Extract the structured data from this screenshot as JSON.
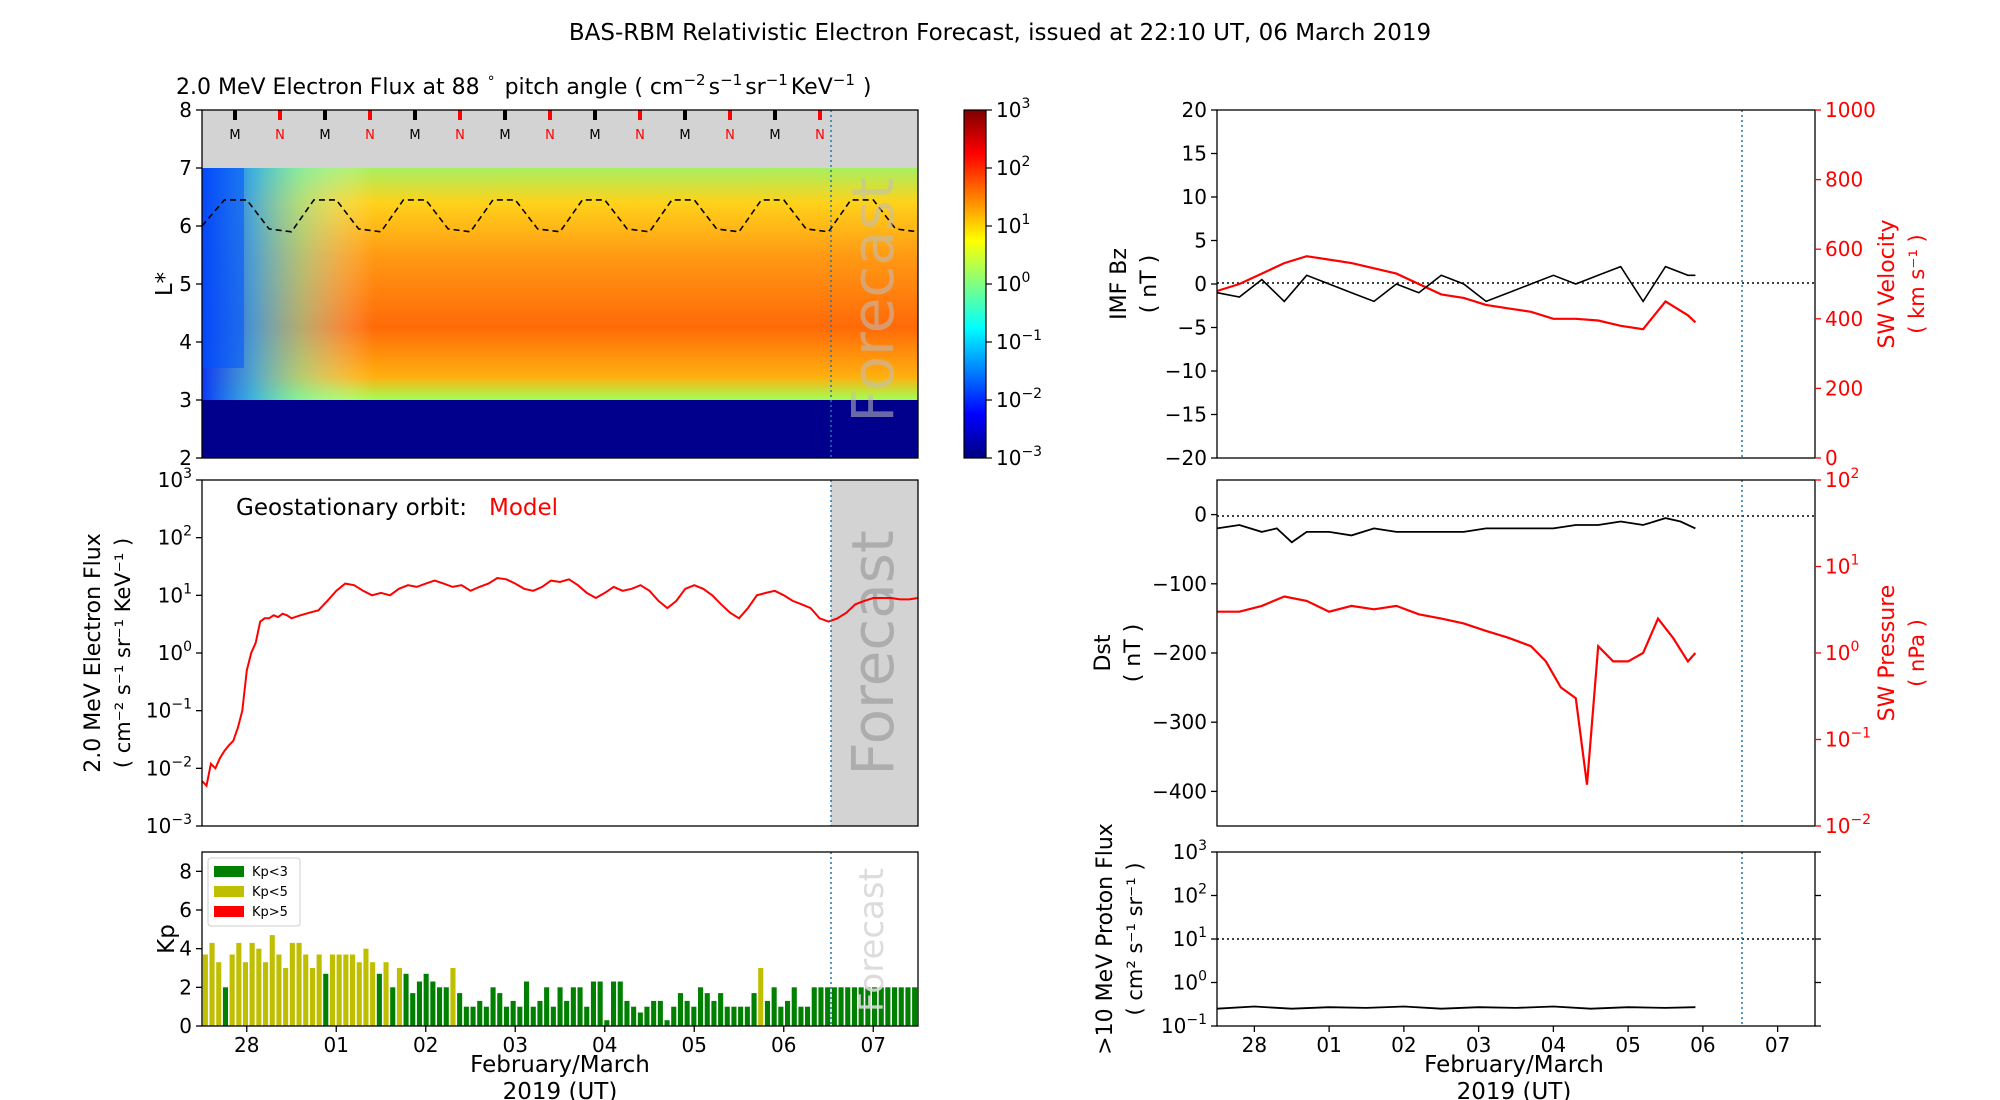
{
  "title": "BAS-RBM Relativistic Electron Forecast, issued at 22:10 UT, 06 March 2019",
  "colors": {
    "model": "#ff0000",
    "kp_low": "#008000",
    "kp_mid": "#bfbf00",
    "kp_high": "#ff0000",
    "forecast_shade": "#d3d3d3",
    "issue_line": "#1f77b4",
    "mn_ticks_m": "#000000",
    "mn_ticks_n": "#ff0000"
  },
  "date_ticks": [
    "28",
    "01",
    "02",
    "03",
    "04",
    "05",
    "06",
    "07"
  ],
  "x_axis": {
    "line1": "February/March",
    "line2": "2019 (UT)"
  },
  "forecast_label": "Forecast",
  "chart_data": [
    {
      "id": "lstar_flux",
      "type": "heatmap",
      "title_main": "2.0 MeV Electron Flux at 88",
      "title_deg": "°",
      "title_rest": "pitch angle ( cm",
      "title_sup1": "−2",
      "title_s": "s",
      "title_sup2": "−1",
      "title_sr": "sr",
      "title_sup3": "−1",
      "title_kev": "KeV",
      "title_sup4": "−1",
      "title_end": ")",
      "ylabel": "L*",
      "ylim": [
        2,
        8
      ],
      "yticks": [
        "2",
        "3",
        "4",
        "5",
        "6",
        "7",
        "8"
      ],
      "colorbar_ticks": [
        {
          "base": "10",
          "exp": "3"
        },
        {
          "base": "10",
          "exp": "2"
        },
        {
          "base": "10",
          "exp": "1"
        },
        {
          "base": "10",
          "exp": "0"
        },
        {
          "base": "10",
          "exp": "−1"
        },
        {
          "base": "10",
          "exp": "−2"
        },
        {
          "base": "10",
          "exp": "−3"
        }
      ],
      "mn_labels": [
        "M",
        "N",
        "M",
        "N",
        "M",
        "N",
        "M",
        "N",
        "M",
        "N",
        "M",
        "N",
        "M",
        "N"
      ],
      "magnetopause_L": [
        6.0,
        6.45,
        6.45,
        5.95,
        5.9,
        6.45,
        6.45,
        5.95,
        5.9,
        6.45,
        6.45,
        5.95,
        5.9,
        6.45,
        6.45,
        5.95,
        5.9,
        6.45,
        6.45,
        5.95,
        5.9,
        6.45,
        6.45,
        5.95,
        5.9,
        6.45,
        6.45,
        5.95,
        5.9,
        6.45,
        6.45,
        5.95,
        5.9
      ]
    },
    {
      "id": "geo_flux",
      "type": "line",
      "label_prefix": "Geostationary orbit:",
      "label_model": "Model",
      "ylabel_line1": "2.0 MeV Electron Flux",
      "ylabel_line2": "( cm⁻² s⁻¹ sr⁻¹ KeV⁻¹ )",
      "ylim": [
        0.001,
        1000
      ],
      "yscale": "log",
      "yticks": [
        {
          "base": "10",
          "exp": "3"
        },
        {
          "base": "10",
          "exp": "2"
        },
        {
          "base": "10",
          "exp": "1"
        },
        {
          "base": "10",
          "exp": "0"
        },
        {
          "base": "10",
          "exp": "−1"
        },
        {
          "base": "10",
          "exp": "−2"
        },
        {
          "base": "10",
          "exp": "−3"
        }
      ],
      "x_days": [
        0,
        0.05,
        0.1,
        0.15,
        0.2,
        0.25,
        0.3,
        0.35,
        0.4,
        0.45,
        0.5,
        0.55,
        0.6,
        0.65,
        0.7,
        0.75,
        0.8,
        0.85,
        0.9,
        0.95,
        1.0,
        1.1,
        1.2,
        1.3,
        1.4,
        1.5,
        1.6,
        1.7,
        1.8,
        1.9,
        2.0,
        2.1,
        2.2,
        2.3,
        2.4,
        2.5,
        2.6,
        2.7,
        2.8,
        2.9,
        3.0,
        3.1,
        3.2,
        3.3,
        3.4,
        3.5,
        3.6,
        3.7,
        3.8,
        3.9,
        4.0,
        4.1,
        4.2,
        4.3,
        4.4,
        4.5,
        4.6,
        4.7,
        4.8,
        4.9,
        5.0,
        5.1,
        5.2,
        5.3,
        5.4,
        5.5,
        5.6,
        5.7,
        5.8,
        5.9,
        6.0,
        6.1,
        6.2,
        6.3,
        6.4,
        6.5,
        6.6,
        6.7,
        6.8,
        6.9,
        7.0,
        7.1,
        7.2,
        7.3,
        7.4,
        7.5,
        7.6,
        7.7,
        7.8,
        7.9,
        8.0
      ],
      "values": [
        0.006,
        0.005,
        0.012,
        0.01,
        0.015,
        0.02,
        0.025,
        0.03,
        0.05,
        0.1,
        0.5,
        1.0,
        1.5,
        3.5,
        4.0,
        4.0,
        4.5,
        4.2,
        4.8,
        4.5,
        4.0,
        4.5,
        5.0,
        5.5,
        8.0,
        12.0,
        16.0,
        15.0,
        12.0,
        10.0,
        11.0,
        10.0,
        13.0,
        15.0,
        14.0,
        16.0,
        18.0,
        16.0,
        14.0,
        15.0,
        12.0,
        14.0,
        16.0,
        20.0,
        19.0,
        16.0,
        13.0,
        12.0,
        14.0,
        18.0,
        17.0,
        19.0,
        15.0,
        11.0,
        9.0,
        11.0,
        14.0,
        12.0,
        13.0,
        15.0,
        12.0,
        8.0,
        6.0,
        8.0,
        13.0,
        15.0,
        13.0,
        10.0,
        7.0,
        5.0,
        4.0,
        6.0,
        10.0,
        11.0,
        12.0,
        10.0,
        8.0,
        7.0,
        6.0,
        4.0,
        3.5,
        4.0,
        5.0,
        7.0,
        8.0,
        9.0,
        9.0,
        9.0,
        8.5,
        8.5,
        9.0
      ]
    },
    {
      "id": "kp",
      "type": "bar",
      "ylabel": "Kp",
      "ylim": [
        0,
        9
      ],
      "yticks": [
        "0",
        "2",
        "4",
        "6",
        "8"
      ],
      "legend": [
        "Kp<3",
        "Kp<5",
        "Kp>5"
      ],
      "values": [
        3.7,
        4.3,
        3.3,
        2.0,
        3.7,
        4.3,
        3.3,
        4.3,
        4.0,
        3.3,
        4.7,
        3.7,
        3.0,
        4.3,
        4.3,
        3.7,
        3.0,
        3.7,
        2.7,
        3.7,
        3.7,
        3.7,
        3.7,
        3.3,
        4.0,
        3.3,
        2.7,
        3.3,
        2.0,
        3.0,
        2.7,
        1.7,
        2.3,
        2.7,
        2.3,
        2.0,
        2.0,
        3.0,
        1.7,
        1.0,
        1.0,
        1.3,
        1.0,
        2.0,
        1.7,
        1.0,
        1.3,
        1.0,
        2.3,
        1.0,
        1.3,
        2.0,
        1.0,
        2.0,
        1.3,
        2.0,
        2.0,
        1.0,
        2.3,
        2.3,
        0.3,
        2.3,
        2.3,
        1.3,
        1.0,
        0.7,
        1.0,
        1.3,
        1.3,
        0.3,
        1.0,
        1.7,
        1.3,
        1.0,
        2.0,
        1.7,
        1.3,
        1.7,
        1.0,
        1.0,
        1.0,
        1.0,
        1.7,
        3.0,
        1.3,
        2.0,
        1.0,
        1.3,
        2.0,
        1.0,
        1.0,
        2.0,
        2.0,
        2.0,
        2.0,
        2.0,
        2.0,
        2.0,
        2.0,
        2.0,
        2.0,
        2.0,
        2.0,
        2.0,
        2.0,
        2.0,
        2.0
      ]
    },
    {
      "id": "imf_bz_sw",
      "type": "line",
      "ylabel_left_1": "IMF Bz",
      "ylabel_left_2": "( nT )",
      "ylabel_right_1": "SW Velocity",
      "ylabel_right_2": "( km s⁻¹ )",
      "ylim_left": [
        -20,
        20
      ],
      "yticks_left": [
        "−20",
        "−15",
        "−10",
        "−5",
        "0",
        "5",
        "10",
        "15",
        "20"
      ],
      "ylim_right": [
        0,
        1000
      ],
      "yticks_right": [
        "0",
        "200",
        "400",
        "600",
        "800",
        "1000"
      ],
      "series": [
        {
          "x_days": [
            0,
            0.3,
            0.6,
            0.9,
            1.2,
            1.5,
            1.8,
            2.1,
            2.4,
            2.7,
            3.0,
            3.3,
            3.6,
            3.9,
            4.2,
            4.5,
            4.8,
            5.1,
            5.4,
            5.7,
            6.0,
            6.3,
            6.4
          ],
          "values": [
            -1,
            -1.5,
            0.5,
            -2,
            1,
            0,
            -1,
            -2,
            0,
            -1,
            1,
            0,
            -2,
            -1,
            0,
            1,
            0,
            1,
            2,
            -2,
            2,
            1,
            1
          ]
        },
        {
          "x_days": [
            0,
            0.3,
            0.6,
            0.9,
            1.2,
            1.5,
            1.8,
            2.1,
            2.4,
            2.7,
            3.0,
            3.3,
            3.6,
            3.9,
            4.2,
            4.5,
            4.8,
            5.1,
            5.4,
            5.7,
            6.0,
            6.3,
            6.4
          ],
          "values": [
            480,
            500,
            530,
            560,
            580,
            570,
            560,
            545,
            530,
            500,
            470,
            460,
            440,
            430,
            420,
            400,
            400,
            395,
            380,
            370,
            450,
            410,
            390
          ]
        }
      ]
    },
    {
      "id": "dst_pressure",
      "type": "line",
      "ylabel_left_1": "Dst",
      "ylabel_left_2": "( nT )",
      "ylabel_right_1": "SW Pressure",
      "ylabel_right_2": "( nPa )",
      "ylim_left": [
        -450,
        50
      ],
      "yticks_left": [
        "0",
        "−100",
        "−200",
        "−300",
        "−400"
      ],
      "ylim_right": [
        0.01,
        100
      ],
      "yticks_right": [
        {
          "base": "10",
          "exp": "2"
        },
        {
          "base": "10",
          "exp": "1"
        },
        {
          "base": "10",
          "exp": "0"
        },
        {
          "base": "10",
          "exp": "−1"
        },
        {
          "base": "10",
          "exp": "−2"
        }
      ],
      "series": [
        {
          "x_days": [
            0,
            0.3,
            0.6,
            0.8,
            1.0,
            1.2,
            1.5,
            1.8,
            2.1,
            2.4,
            2.7,
            3.0,
            3.3,
            3.6,
            3.9,
            4.2,
            4.5,
            4.8,
            5.1,
            5.4,
            5.7,
            6.0,
            6.2,
            6.4
          ],
          "values": [
            -20,
            -15,
            -25,
            -20,
            -40,
            -25,
            -25,
            -30,
            -20,
            -25,
            -25,
            -25,
            -25,
            -20,
            -20,
            -20,
            -20,
            -15,
            -15,
            -10,
            -15,
            -5,
            -10,
            -20
          ]
        },
        {
          "x_days": [
            0,
            0.3,
            0.6,
            0.9,
            1.2,
            1.5,
            1.8,
            2.1,
            2.4,
            2.7,
            3.0,
            3.3,
            3.6,
            3.9,
            4.2,
            4.4,
            4.6,
            4.8,
            4.95,
            5.1,
            5.3,
            5.5,
            5.7,
            5.9,
            6.1,
            6.3,
            6.4
          ],
          "values": [
            3.0,
            3.0,
            3.5,
            4.5,
            4.0,
            3.0,
            3.5,
            3.2,
            3.5,
            2.8,
            2.5,
            2.2,
            1.8,
            1.5,
            1.2,
            0.8,
            0.4,
            0.3,
            0.03,
            1.2,
            0.8,
            0.8,
            1.0,
            2.5,
            1.5,
            0.8,
            1.0
          ]
        }
      ]
    },
    {
      "id": "proton_flux",
      "type": "line",
      "ylabel_line1": ">10 MeV Proton Flux",
      "ylabel_line2": "( cm² s⁻¹ sr⁻¹ )",
      "ylim": [
        0.1,
        1000
      ],
      "yscale": "log",
      "yticks": [
        {
          "base": "10",
          "exp": "3"
        },
        {
          "base": "10",
          "exp": "2"
        },
        {
          "base": "10",
          "exp": "1"
        },
        {
          "base": "10",
          "exp": "0"
        },
        {
          "base": "10",
          "exp": "−1"
        }
      ],
      "threshold": 10,
      "series": [
        {
          "x_days": [
            0,
            0.5,
            1.0,
            1.5,
            2.0,
            2.5,
            3.0,
            3.5,
            4.0,
            4.5,
            5.0,
            5.5,
            6.0,
            6.4
          ],
          "values": [
            0.25,
            0.28,
            0.25,
            0.27,
            0.26,
            0.28,
            0.25,
            0.27,
            0.26,
            0.28,
            0.25,
            0.27,
            0.26,
            0.27
          ]
        }
      ]
    }
  ]
}
